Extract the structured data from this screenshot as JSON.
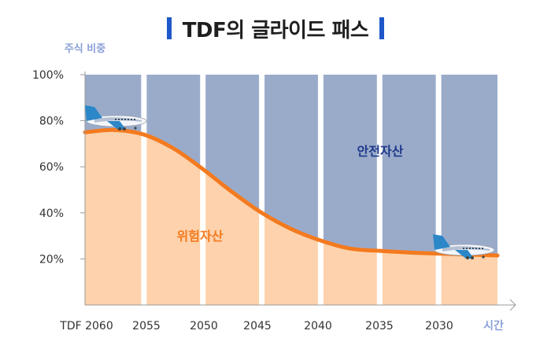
{
  "header": {
    "title": "TDF의 글라이드 패스"
  },
  "chart_data": {
    "type": "area",
    "title": "TDF의 글라이드 패스",
    "ylabel": "주식 비중",
    "xlabel": "시간",
    "ylim": [
      0,
      100
    ],
    "yticks": [
      "20%",
      "40%",
      "60%",
      "80%",
      "100%"
    ],
    "categories": [
      "TDF 2060",
      "2055",
      "2050",
      "2045",
      "2040",
      "2035",
      "2030"
    ],
    "curve": {
      "x": [
        0,
        0.5,
        1,
        1.5,
        2,
        2.5,
        3,
        3.5,
        4,
        4.5,
        5,
        5.5,
        6,
        7
      ],
      "y": [
        75,
        76,
        74,
        68,
        59,
        49,
        40,
        33,
        28,
        24.5,
        23.5,
        22.8,
        22.3,
        21.5
      ]
    },
    "series": [
      {
        "name": "위험자산",
        "color": "#fdd2ac"
      },
      {
        "name": "안전자산",
        "color": "#9aabca"
      }
    ],
    "line_color": "#f47a1f",
    "grid": false,
    "icons": [
      "airplane-icon",
      "airplane-icon"
    ]
  },
  "colors": {
    "title_bar": "#1e57c9",
    "label_dark_blue": "#1e3a8a",
    "label_orange": "#f47a1f",
    "axis_label": "#8aa0d8"
  }
}
